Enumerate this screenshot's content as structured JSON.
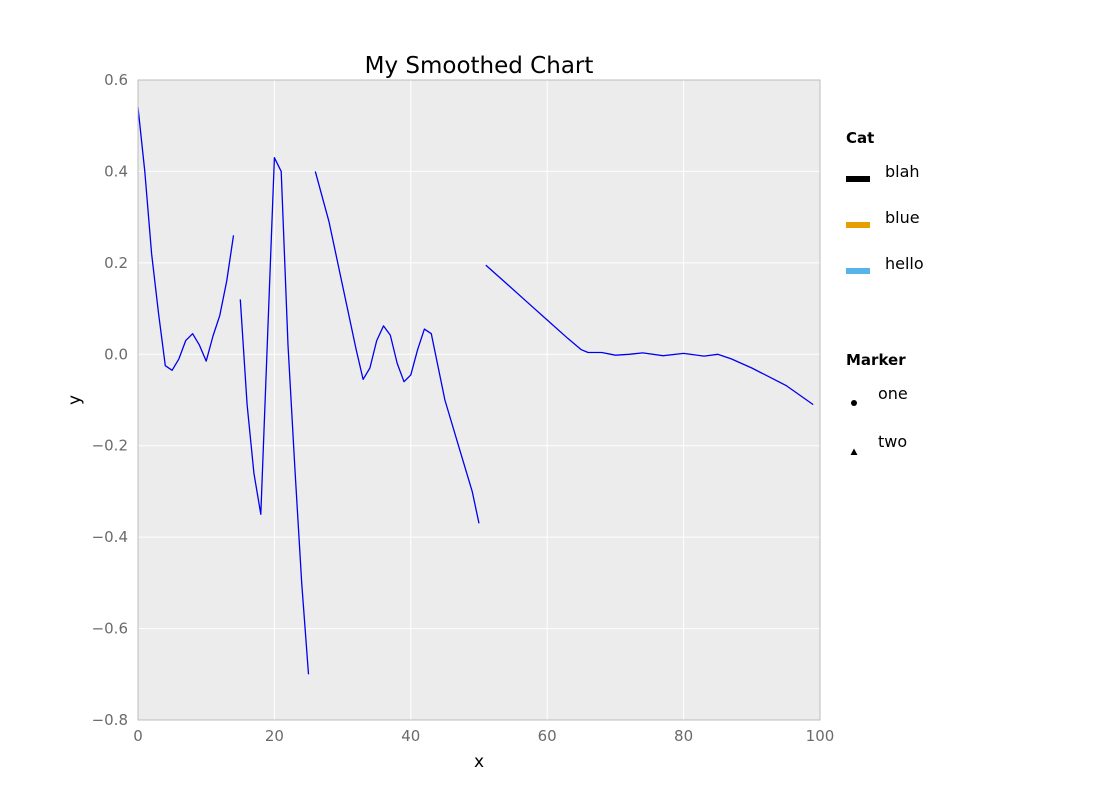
{
  "chart_data": {
    "type": "line",
    "title": "My Smoothed Chart",
    "xlabel": "x",
    "ylabel": "y",
    "xlim": [
      0,
      100
    ],
    "ylim": [
      -0.8,
      0.6
    ],
    "xticks": [
      0,
      20,
      40,
      60,
      80,
      100
    ],
    "xtick_labels": [
      "0",
      "20",
      "40",
      "60",
      "80",
      "100"
    ],
    "yticks": [
      0.6,
      0.4,
      0.2,
      0.0,
      -0.2,
      -0.4,
      -0.6,
      -0.8
    ],
    "ytick_labels": [
      "0.6",
      "0.4",
      "0.2",
      "0.0",
      "−0.2",
      "−0.4",
      "−0.6",
      "−0.8"
    ],
    "grid": true,
    "colors": {
      "plot_background": "#ececec",
      "grid": "#ffffff",
      "line": "#0000ee",
      "frame": "#bdbdbd"
    },
    "series": [
      {
        "color": "#0000ee",
        "segments": [
          [
            [
              0,
              0.54
            ],
            [
              1,
              0.4
            ],
            [
              2,
              0.22
            ],
            [
              3,
              0.09
            ],
            [
              4,
              -0.025
            ],
            [
              5,
              -0.035
            ],
            [
              6,
              -0.01
            ],
            [
              7,
              0.03
            ],
            [
              8,
              0.045
            ],
            [
              9,
              0.02
            ],
            [
              10,
              -0.015
            ],
            [
              11,
              0.04
            ],
            [
              12,
              0.085
            ],
            [
              13,
              0.16
            ],
            [
              14,
              0.26
            ]
          ],
          [
            [
              15,
              0.12
            ],
            [
              16,
              -0.11
            ],
            [
              17,
              -0.26
            ],
            [
              18,
              -0.35
            ],
            [
              19,
              0.04
            ],
            [
              20,
              0.43
            ],
            [
              21,
              0.4
            ],
            [
              22,
              0.02
            ],
            [
              23,
              -0.25
            ],
            [
              24,
              -0.5
            ],
            [
              25,
              -0.7
            ]
          ],
          [
            [
              26,
              0.4
            ],
            [
              28,
              0.29
            ],
            [
              30,
              0.15
            ],
            [
              32,
              0.01
            ],
            [
              33,
              -0.055
            ],
            [
              34,
              -0.03
            ],
            [
              35,
              0.03
            ],
            [
              36,
              0.062
            ],
            [
              37,
              0.042
            ],
            [
              38,
              -0.02
            ],
            [
              39,
              -0.06
            ],
            [
              40,
              -0.045
            ],
            [
              41,
              0.01
            ],
            [
              42,
              0.055
            ],
            [
              43,
              0.045
            ],
            [
              45,
              -0.1
            ],
            [
              47,
              -0.2
            ],
            [
              49,
              -0.3
            ],
            [
              50,
              -0.37
            ]
          ],
          [
            [
              51,
              0.195
            ],
            [
              54,
              0.155
            ],
            [
              57,
              0.115
            ],
            [
              60,
              0.075
            ],
            [
              63,
              0.035
            ],
            [
              65,
              0.01
            ],
            [
              66,
              0.004
            ],
            [
              68,
              0.004
            ],
            [
              70,
              -0.002
            ],
            [
              72,
              0.0
            ],
            [
              74,
              0.003
            ],
            [
              77,
              -0.003
            ],
            [
              80,
              0.002
            ],
            [
              83,
              -0.004
            ],
            [
              85,
              0.0
            ],
            [
              87,
              -0.01
            ],
            [
              90,
              -0.03
            ],
            [
              95,
              -0.068
            ],
            [
              99,
              -0.11
            ]
          ]
        ]
      }
    ],
    "legend": {
      "placement": "right",
      "groups": [
        {
          "title": "Cat",
          "items": [
            {
              "label": "blah",
              "color": "#000000",
              "symbol": "line"
            },
            {
              "label": "blue",
              "color": "#e69f00",
              "symbol": "line"
            },
            {
              "label": "hello",
              "color": "#56b4e9",
              "symbol": "line"
            }
          ]
        },
        {
          "title": "Marker",
          "items": [
            {
              "label": "one",
              "color": "#000000",
              "symbol": "circle"
            },
            {
              "label": "two",
              "color": "#000000",
              "symbol": "triangle"
            }
          ]
        }
      ]
    }
  }
}
